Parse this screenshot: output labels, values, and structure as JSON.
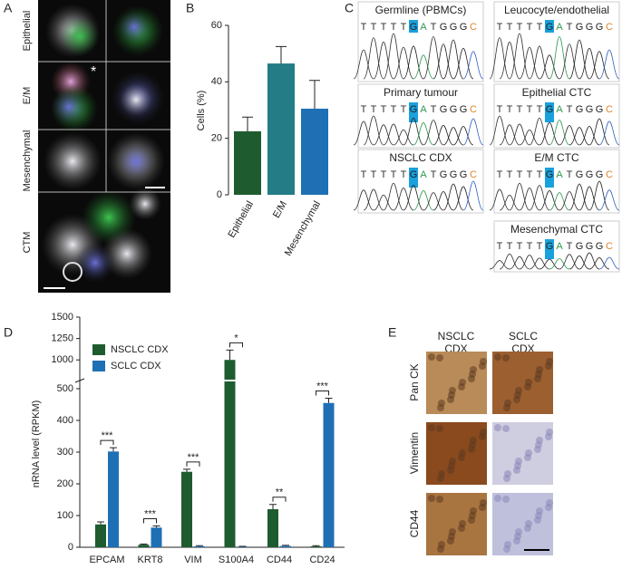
{
  "panel_labels": [
    "A",
    "B",
    "C",
    "D",
    "E"
  ],
  "panel_a": {
    "rows": [
      "Epithelial",
      "E/M",
      "Mesenchymal",
      "CTM"
    ],
    "marker": "*"
  },
  "chart_data": [
    {
      "type": "bar",
      "ylabel": "Cells (%)",
      "categories": [
        "Epithelial",
        "E/M",
        "Mesenchymal"
      ],
      "values": [
        22.5,
        46.5,
        30.5
      ],
      "errors": [
        5,
        6,
        10
      ],
      "colors": [
        "#1e5c30",
        "#237c86",
        "#1f6fb5"
      ],
      "ylim": [
        0,
        60
      ],
      "yticks": [
        0,
        20,
        40,
        60
      ]
    },
    {
      "type": "grouped-bar",
      "ylabel": "nRNA level (RPKM)",
      "categories": [
        "EPCAM",
        "KRT8",
        "VIM",
        "S100A4",
        "CD44",
        "CD24"
      ],
      "series": [
        {
          "name": "NSCLC CDX",
          "color": "#1e5c30",
          "values": [
            72,
            8,
            238,
            1000,
            120,
            3
          ],
          "errors": [
            8,
            2,
            8,
            115,
            15,
            2
          ]
        },
        {
          "name": "SCLC CDX",
          "color": "#1f6fb5",
          "values": [
            302,
            62,
            3,
            2,
            4,
            455
          ],
          "errors": [
            12,
            5,
            2,
            1,
            2,
            15
          ]
        }
      ],
      "significance": [
        "***",
        "***",
        "***",
        "*",
        "**",
        "***"
      ],
      "ylim": [
        0,
        1500
      ],
      "y_break": [
        520,
        780
      ],
      "yticks": [
        0,
        100,
        200,
        300,
        400,
        500,
        1000,
        1250,
        1500
      ],
      "legend": "upper left"
    }
  ],
  "panel_c": {
    "traces": [
      {
        "title": "Germline (PBMCs)",
        "letters": [
          "T",
          "T",
          "T",
          "T",
          "T",
          "G",
          "A",
          "T",
          "G",
          "G",
          "G",
          "C"
        ]
      },
      {
        "title": "Leucocyte/endothelial",
        "letters": [
          "T",
          "T",
          "T",
          "T",
          "T",
          "G",
          "A",
          "T",
          "G",
          "G",
          "G",
          "C"
        ]
      },
      {
        "title": "Primary tumour",
        "letters": [
          "T",
          "T",
          "T",
          "T",
          "T",
          "G",
          "A",
          "T",
          "G",
          "G",
          "G",
          "C"
        ]
      },
      {
        "title": "Epithelial CTC",
        "letters": [
          "T",
          "T",
          "T",
          "T",
          "T",
          "G",
          "A",
          "T",
          "G",
          "G",
          "G",
          "C"
        ]
      },
      {
        "title": "NSCLC CDX",
        "letters": [
          "T",
          "T",
          "T",
          "T",
          "T",
          "G",
          "A",
          "T",
          "G",
          "G",
          "G",
          "C"
        ]
      },
      {
        "title": "E/M CTC",
        "letters": [
          "T",
          "T",
          "T",
          "T",
          "T",
          "G",
          "A",
          "T",
          "G",
          "G",
          "G",
          "C"
        ]
      },
      {
        "title": "Mesenchymal CTC",
        "letters": [
          "T",
          "T",
          "T",
          "T",
          "T",
          "G",
          "A",
          "T",
          "G",
          "G",
          "G",
          "C"
        ]
      }
    ]
  },
  "panel_e": {
    "columns": [
      [
        "NSCLC",
        "CDX"
      ],
      [
        "SCLC",
        "CDX"
      ]
    ],
    "rows": [
      "Pan CK",
      "Vimentin",
      "CD44"
    ]
  }
}
